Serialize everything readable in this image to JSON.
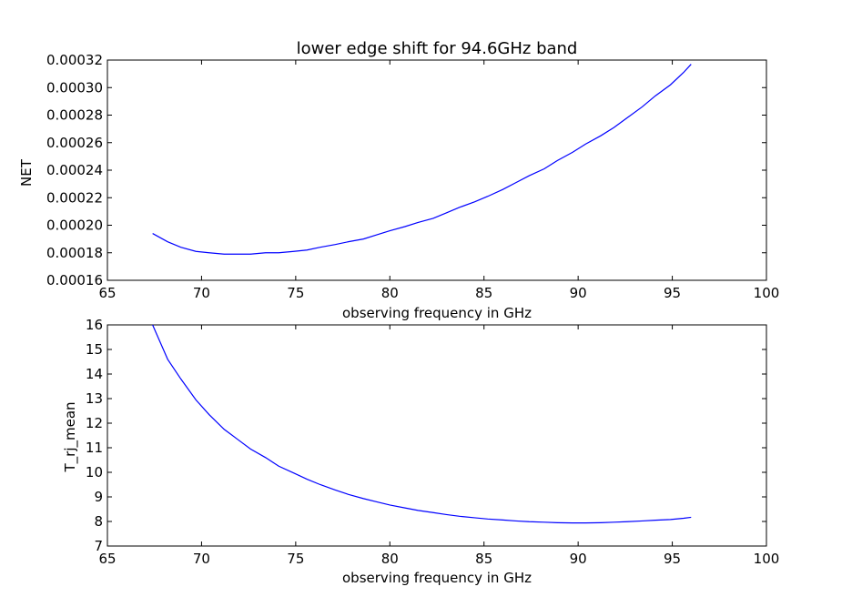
{
  "chart_data": [
    {
      "type": "line",
      "title": "lower edge shift for 94.6GHz band",
      "xlabel": "observing frequency in GHz",
      "ylabel": "NET",
      "xlim": [
        65,
        100
      ],
      "ylim": [
        0.00016,
        0.00032
      ],
      "xticks": [
        "65",
        "70",
        "75",
        "80",
        "85",
        "90",
        "95",
        "100"
      ],
      "yticks": [
        "0.00016",
        "0.00018",
        "0.00020",
        "0.00022",
        "0.00024",
        "0.00026",
        "0.00028",
        "0.00030",
        "0.00032"
      ],
      "grid": false,
      "color": "#0000ff",
      "series": [
        {
          "x": [
            67.4,
            68.2,
            68.9,
            69.7,
            70.4,
            71.2,
            71.9,
            72.6,
            73.4,
            74.1,
            74.9,
            75.6,
            76.3,
            77.1,
            77.8,
            78.6,
            79.3,
            80.0,
            80.8,
            81.5,
            82.3,
            83.0,
            83.7,
            84.5,
            85.2,
            86.0,
            86.7,
            87.4,
            88.2,
            88.9,
            89.7,
            90.4,
            91.2,
            91.9,
            92.6,
            93.4,
            94.1,
            94.9,
            95.6,
            96.0
          ],
          "values": [
            0.000194,
            0.000188,
            0.000184,
            0.000181,
            0.00018,
            0.000179,
            0.000179,
            0.000179,
            0.00018,
            0.00018,
            0.000181,
            0.000182,
            0.000184,
            0.000186,
            0.000188,
            0.00019,
            0.000193,
            0.000196,
            0.000199,
            0.000202,
            0.000205,
            0.000209,
            0.000213,
            0.000217,
            0.000221,
            0.000226,
            0.000231,
            0.000236,
            0.000241,
            0.000247,
            0.000253,
            0.000259,
            0.000265,
            0.000271,
            0.000278,
            0.000286,
            0.000294,
            0.000302,
            0.000311,
            0.000317
          ]
        }
      ]
    },
    {
      "type": "line",
      "title": "",
      "xlabel": "observing frequency in GHz",
      "ylabel": "T_rj_mean",
      "xlim": [
        65,
        100
      ],
      "ylim": [
        7,
        16
      ],
      "xticks": [
        "65",
        "70",
        "75",
        "80",
        "85",
        "90",
        "95",
        "100"
      ],
      "yticks": [
        "7",
        "8",
        "9",
        "10",
        "11",
        "12",
        "13",
        "14",
        "15",
        "16"
      ],
      "grid": false,
      "color": "#0000ff",
      "series": [
        {
          "x": [
            67.4,
            68.2,
            68.9,
            69.7,
            70.4,
            71.2,
            71.9,
            72.6,
            73.4,
            74.1,
            74.9,
            75.6,
            76.3,
            77.1,
            77.8,
            78.6,
            79.3,
            80.0,
            80.8,
            81.5,
            82.3,
            83.0,
            83.7,
            84.5,
            85.2,
            86.0,
            86.7,
            87.4,
            88.2,
            88.9,
            89.7,
            90.4,
            91.2,
            91.9,
            92.6,
            93.4,
            94.1,
            94.9,
            95.6,
            96.0
          ],
          "values": [
            16.0,
            14.6,
            13.8,
            12.95,
            12.35,
            11.75,
            11.35,
            10.95,
            10.6,
            10.25,
            9.97,
            9.72,
            9.5,
            9.28,
            9.1,
            8.93,
            8.8,
            8.67,
            8.55,
            8.45,
            8.36,
            8.28,
            8.21,
            8.15,
            8.1,
            8.06,
            8.02,
            7.99,
            7.97,
            7.95,
            7.94,
            7.94,
            7.95,
            7.97,
            7.99,
            8.02,
            8.05,
            8.08,
            8.13,
            8.17
          ]
        }
      ]
    }
  ]
}
